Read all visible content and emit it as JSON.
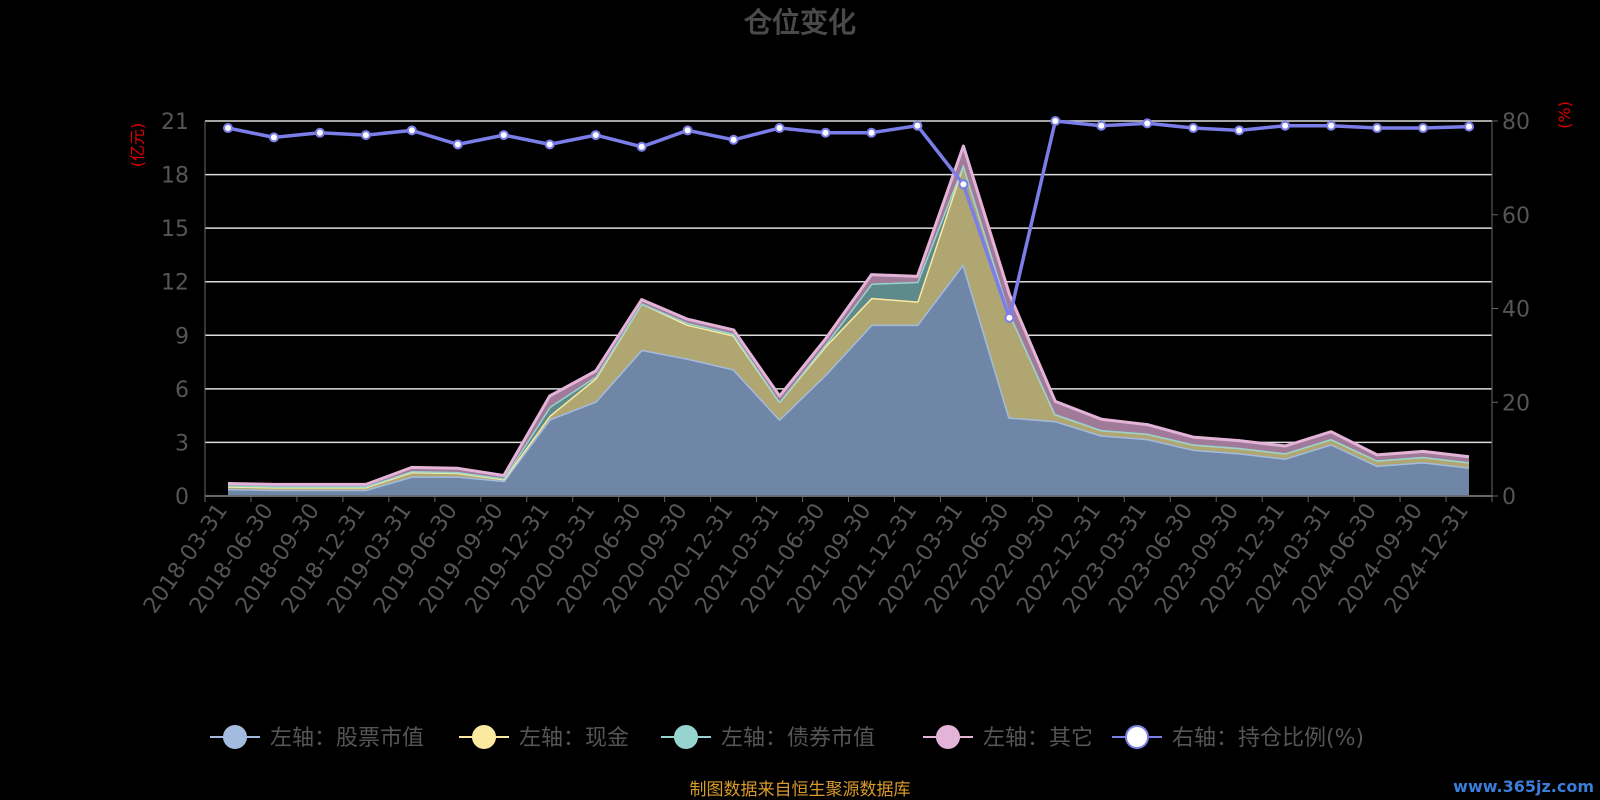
{
  "chart_data": {
    "type": "area",
    "title": "仓位变化",
    "left_axis_unit": "(亿元)",
    "right_axis_unit": "(%)",
    "ylim_left": [
      0,
      21
    ],
    "yticks_left": [
      "0",
      "3",
      "6",
      "9",
      "12",
      "15",
      "18",
      "21"
    ],
    "ylim_right": [
      0,
      80
    ],
    "yticks_right": [
      "0",
      "20",
      "40",
      "60",
      "80"
    ],
    "grid": true,
    "legend_position": "bottom",
    "categories": [
      "2018-03-31",
      "2018-06-30",
      "2018-09-30",
      "2018-12-31",
      "2019-03-31",
      "2019-06-30",
      "2019-09-30",
      "2019-12-31",
      "2020-03-31",
      "2020-06-30",
      "2020-09-30",
      "2020-12-31",
      "2021-03-31",
      "2021-06-30",
      "2021-09-30",
      "2021-12-31",
      "2022-03-31",
      "2022-06-30",
      "2022-09-30",
      "2022-12-31",
      "2023-03-31",
      "2023-06-30",
      "2023-09-30",
      "2023-12-31",
      "2024-03-31",
      "2024-06-30",
      "2024-09-30",
      "2024-12-31"
    ],
    "series": [
      {
        "name": "左轴：股票市值",
        "axis": "left",
        "color": "#a4bbe0",
        "fill": "#6f86a6",
        "values": [
          0.4,
          0.35,
          0.35,
          0.35,
          1.1,
          1.1,
          0.85,
          4.3,
          5.3,
          8.2,
          7.7,
          7.1,
          4.3,
          6.8,
          9.6,
          9.6,
          13.0,
          4.4,
          4.2,
          3.4,
          3.2,
          2.6,
          2.4,
          2.1,
          2.9,
          1.7,
          1.9,
          1.6
        ]
      },
      {
        "name": "左轴：现金",
        "axis": "left",
        "color": "#fbe9a0",
        "fill": "#b0a672",
        "values": [
          0.15,
          0.15,
          0.15,
          0.15,
          0.25,
          0.2,
          0.1,
          0.2,
          1.3,
          2.6,
          1.9,
          1.9,
          1.0,
          1.6,
          1.5,
          1.3,
          5.6,
          5.9,
          0.4,
          0.3,
          0.3,
          0.3,
          0.3,
          0.3,
          0.3,
          0.3,
          0.3,
          0.3
        ]
      },
      {
        "name": "左轴：债券市值",
        "axis": "left",
        "color": "#97d4cf",
        "fill": "#5e8a8c",
        "values": [
          0.05,
          0.05,
          0.05,
          0.05,
          0.05,
          0.05,
          0.05,
          0.5,
          0.1,
          0.0,
          0.1,
          0.1,
          0.0,
          0.1,
          0.8,
          1.1,
          0.0,
          0.0,
          0.0,
          0.0,
          0.0,
          0.0,
          0.0,
          0.0,
          0.0,
          0.0,
          0.0,
          0.0
        ]
      },
      {
        "name": "左轴：其它",
        "axis": "left",
        "color": "#e4b4d8",
        "fill": "#a07a98",
        "values": [
          0.1,
          0.1,
          0.1,
          0.1,
          0.2,
          0.2,
          0.15,
          0.6,
          0.3,
          0.2,
          0.2,
          0.2,
          0.3,
          0.3,
          0.5,
          0.3,
          1.0,
          1.0,
          0.7,
          0.6,
          0.5,
          0.4,
          0.4,
          0.4,
          0.4,
          0.3,
          0.3,
          0.3
        ]
      },
      {
        "name": "右轴：持仓比例(%)",
        "axis": "right",
        "type": "line",
        "color": "#7b7de8",
        "values": [
          78.5,
          76.5,
          77.5,
          77.0,
          78.0,
          75.0,
          77.0,
          75.0,
          77.0,
          74.5,
          78.0,
          76.0,
          78.5,
          77.5,
          77.5,
          79.0,
          66.5,
          38.0,
          80.0,
          79.0,
          79.5,
          78.5,
          78.0,
          79.0,
          79.0,
          78.5,
          78.5,
          78.8
        ]
      }
    ]
  },
  "footer": {
    "source_note": "制图数据来自恒生聚源数据库",
    "watermark": "www.365jz.com"
  }
}
